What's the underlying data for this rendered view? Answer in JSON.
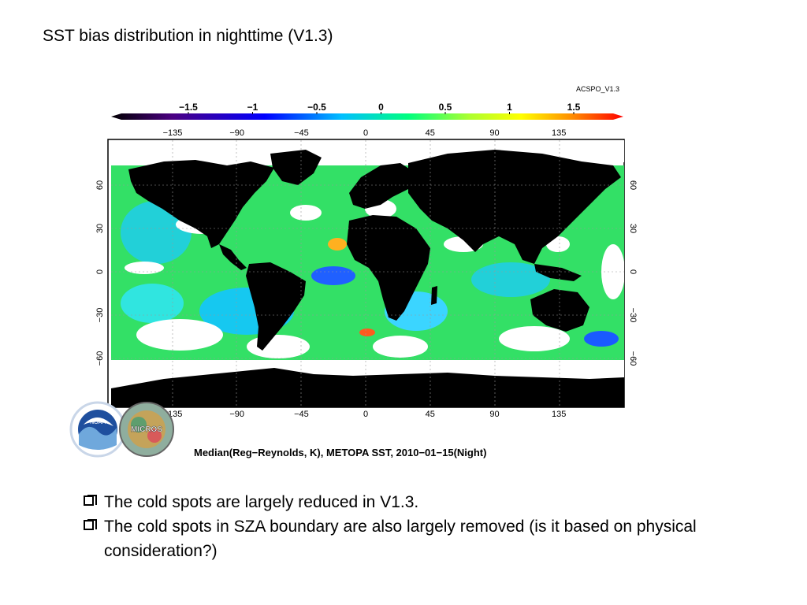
{
  "slide": {
    "title": "SST bias distribution in nighttime (V1.3)"
  },
  "figure": {
    "product_label": "ACSPO_V1.3",
    "caption": "Median(Reg−Reynolds, K), METOPA SST, 2010−01−15(Night)",
    "colorbar_ticks": [
      "−1.5",
      "−1",
      "−0.5",
      "0",
      "0.5",
      "1",
      "1.5"
    ],
    "colorbar_colors": [
      "#000000",
      "#4b0082",
      "#0000ff",
      "#00bfff",
      "#00ff7f",
      "#ffff00",
      "#ff8c00",
      "#ff0000"
    ],
    "lon_ticks": [
      "−135",
      "−90",
      "−45",
      "0",
      "45",
      "90",
      "135"
    ],
    "lat_ticks": [
      "60",
      "30",
      "0",
      "−30",
      "−60"
    ],
    "logos": [
      {
        "name": "noaa-logo",
        "text": "NOAA"
      },
      {
        "name": "micros-logo",
        "text": "MICROS"
      }
    ]
  },
  "bullets": [
    "The cold spots are largely reduced in V1.3.",
    "The cold spots in SZA boundary are also largely removed (is it based on physical consideration?)"
  ]
}
